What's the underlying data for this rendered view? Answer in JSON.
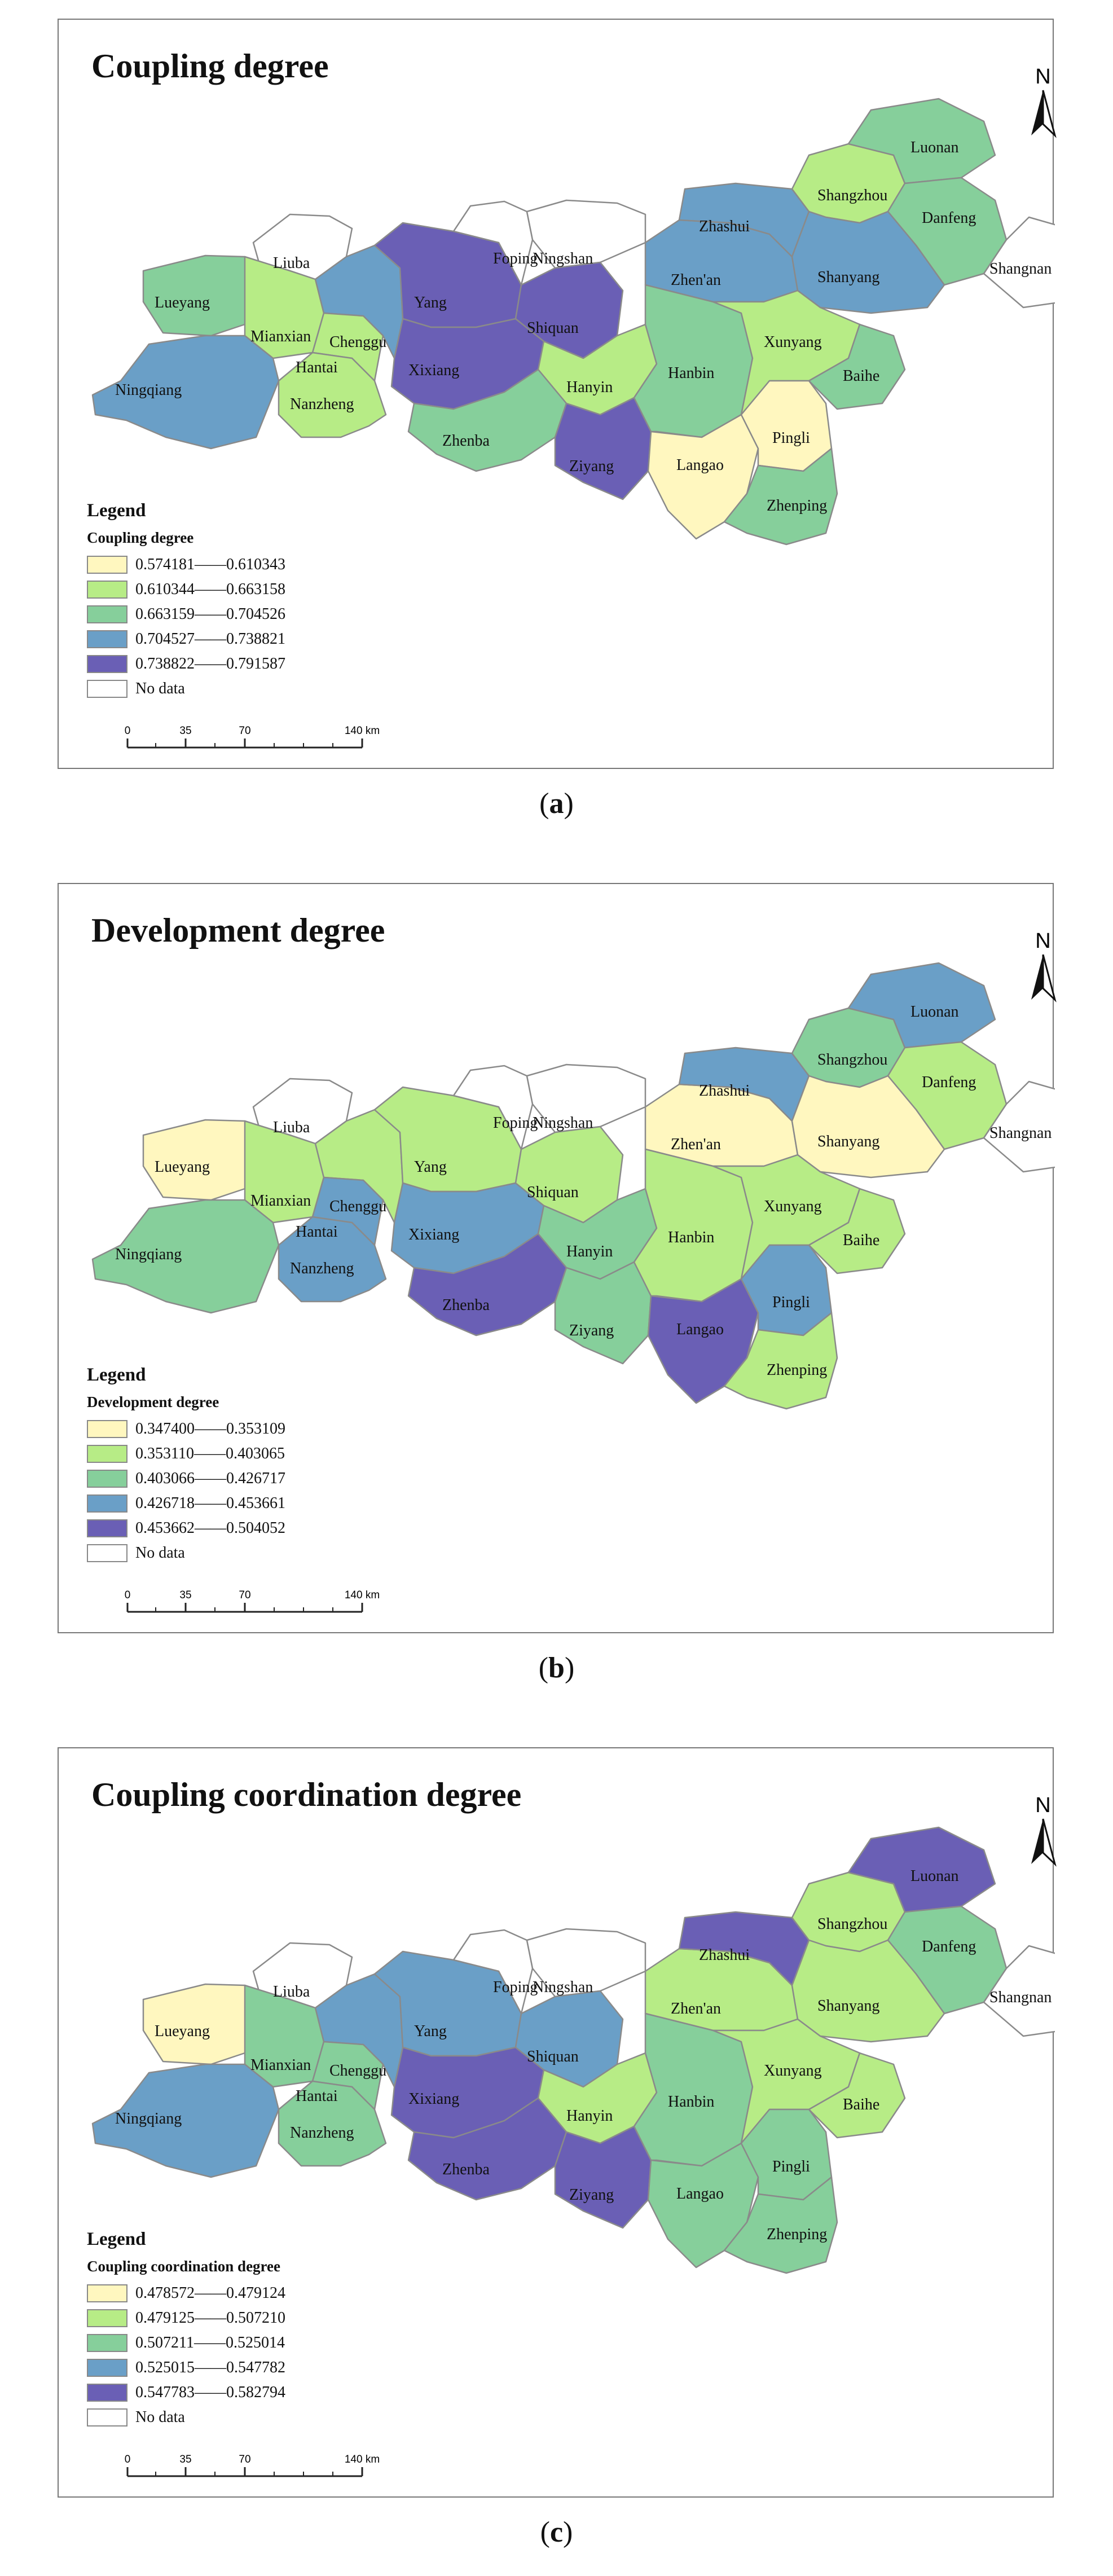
{
  "colors": {
    "c1": "#fff7bf",
    "c2": "#b7ec86",
    "c3": "#86cf9b",
    "c4": "#6a9fc7",
    "c5": "#6a5fb5",
    "nodata": "#ffffff"
  },
  "legend_heading": "Legend",
  "nodata_label": "No data",
  "scale": {
    "ticks": [
      "0",
      "35",
      "70",
      "140 km"
    ]
  },
  "north": "N",
  "regions": [
    "Lueyang",
    "Liuba",
    "Mianxian",
    "Chenggu",
    "Hantai",
    "Ningqiang",
    "Nanzheng",
    "Yang",
    "Foping",
    "Ningshan",
    "Xixiang",
    "Shiquan",
    "Hanyin",
    "Zhenba",
    "Ziyang",
    "Zhen'an",
    "Zhashui",
    "Shangzhou",
    "Luonan",
    "Danfeng",
    "Shangnan",
    "Shanyang",
    "Hanbin",
    "Xunyang",
    "Baihe",
    "Langao",
    "Pingli",
    "Zhenping"
  ],
  "panels": [
    {
      "title": "Coupling degree",
      "caption_letter": "a",
      "legend_sub": "Coupling degree",
      "legend": [
        "0.574181——0.610343",
        "0.610344——0.663158",
        "0.663159——0.704526",
        "0.704527——0.738821",
        "0.738822——0.791587"
      ],
      "classes": {
        "Lueyang": 3,
        "Liuba": 0,
        "Mianxian": 2,
        "Chenggu": 4,
        "Hantai": 2,
        "Ningqiang": 4,
        "Nanzheng": 2,
        "Yang": 5,
        "Foping": 0,
        "Ningshan": 0,
        "Xixiang": 5,
        "Shiquan": 5,
        "Hanyin": 2,
        "Zhenba": 3,
        "Ziyang": 5,
        "Zhen'an": 4,
        "Zhashui": 4,
        "Shangzhou": 2,
        "Luonan": 3,
        "Danfeng": 3,
        "Shangnan": 0,
        "Shanyang": 4,
        "Hanbin": 3,
        "Xunyang": 2,
        "Baihe": 3,
        "Langao": 1,
        "Pingli": 1,
        "Zhenping": 3
      }
    },
    {
      "title": "Development degree",
      "caption_letter": "b",
      "legend_sub": "Development degree",
      "legend": [
        "0.347400——0.353109",
        "0.353110——0.403065",
        "0.403066——0.426717",
        "0.426718——0.453661",
        "0.453662——0.504052"
      ],
      "classes": {
        "Lueyang": 1,
        "Liuba": 0,
        "Mianxian": 2,
        "Chenggu": 2,
        "Hantai": 4,
        "Ningqiang": 3,
        "Nanzheng": 4,
        "Yang": 2,
        "Foping": 0,
        "Ningshan": 0,
        "Xixiang": 4,
        "Shiquan": 2,
        "Hanyin": 3,
        "Zhenba": 5,
        "Ziyang": 3,
        "Zhen'an": 1,
        "Zhashui": 4,
        "Shangzhou": 3,
        "Luonan": 4,
        "Danfeng": 2,
        "Shangnan": 0,
        "Shanyang": 1,
        "Hanbin": 2,
        "Xunyang": 2,
        "Baihe": 2,
        "Langao": 5,
        "Pingli": 4,
        "Zhenping": 2
      }
    },
    {
      "title": "Coupling coordination degree",
      "caption_letter": "c",
      "legend_sub": "Coupling coordination degree",
      "legend": [
        "0.478572——0.479124",
        "0.479125——0.507210",
        "0.507211——0.525014",
        "0.525015——0.547782",
        "0.547783——0.582794"
      ],
      "classes": {
        "Lueyang": 1,
        "Liuba": 0,
        "Mianxian": 3,
        "Chenggu": 4,
        "Hantai": 3,
        "Ningqiang": 4,
        "Nanzheng": 3,
        "Yang": 4,
        "Foping": 0,
        "Ningshan": 0,
        "Xixiang": 5,
        "Shiquan": 4,
        "Hanyin": 2,
        "Zhenba": 5,
        "Ziyang": 5,
        "Zhen'an": 2,
        "Zhashui": 5,
        "Shangzhou": 2,
        "Luonan": 5,
        "Danfeng": 3,
        "Shangnan": 0,
        "Shanyang": 2,
        "Hanbin": 3,
        "Xunyang": 2,
        "Baihe": 2,
        "Langao": 3,
        "Pingli": 3,
        "Zhenping": 3
      }
    }
  ]
}
